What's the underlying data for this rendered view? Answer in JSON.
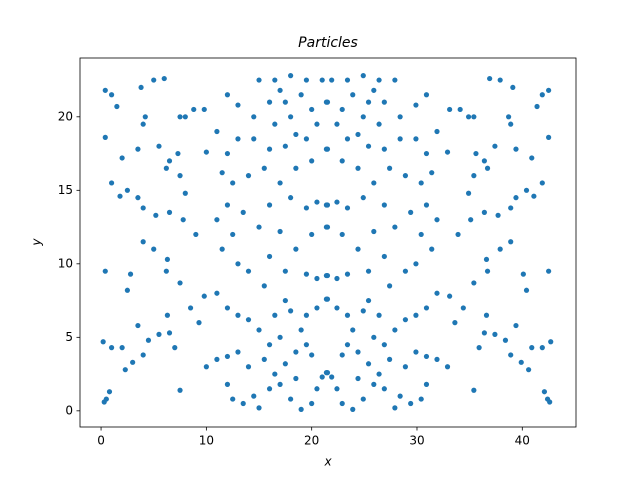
{
  "chart_data": {
    "type": "scatter",
    "title": "Particles",
    "x_label": "x",
    "y_label": "y",
    "color": "#1f77b4",
    "x": [
      0.3,
      0.5,
      0.8,
      0.2,
      1,
      2,
      2.3,
      3,
      4,
      3.5,
      4.5,
      5.5,
      6.5,
      7,
      7.5,
      6.3,
      6.2,
      6.3,
      5,
      4,
      2.8,
      2.5,
      0.4,
      7.5,
      8.5,
      9.3,
      9.8,
      9,
      7.8,
      8,
      6.5,
      5.2,
      4,
      3.5,
      2.5,
      1.8,
      1,
      0.4,
      2,
      3.5,
      4,
      4.2,
      5.5,
      6.5,
      7.3,
      7.5,
      8,
      8.8,
      9.8,
      3.8,
      5,
      6,
      1,
      0.4,
      1.5,
      6.2,
      7.5,
      10,
      42.6,
      42.4,
      42.1,
      42.7,
      41.9,
      40.9,
      40.6,
      39.9,
      38.9,
      39.4,
      38.4,
      37.4,
      36.4,
      35.9,
      35.4,
      36.6,
      36.7,
      36.6,
      37.9,
      38.9,
      40.1,
      40.4,
      42.5,
      35.4,
      34.4,
      33.6,
      33.1,
      33.9,
      35.1,
      34.9,
      36.4,
      37.7,
      38.9,
      39.4,
      40.4,
      41.1,
      41.9,
      42.5,
      40.9,
      39.4,
      38.9,
      38.7,
      37.4,
      36.4,
      35.6,
      35.4,
      34.9,
      34.1,
      33.1,
      39.1,
      37.9,
      36.9,
      41.9,
      42.5,
      41.4,
      36.7,
      35.4,
      32.9,
      10,
      11,
      12,
      12.5,
      13.5,
      14.5,
      15,
      16,
      17,
      18,
      19,
      20,
      20.5,
      21,
      21.5,
      16.5,
      17.5,
      18.5,
      15.5,
      14,
      13,
      12,
      16,
      17,
      18.5,
      19.5,
      20,
      15,
      14,
      13,
      12,
      11,
      16.5,
      18,
      19.5,
      20.5,
      21.5,
      19,
      17.5,
      15.5,
      14,
      13,
      11.5,
      12.5,
      16,
      17.5,
      19.5,
      20.5,
      21.5,
      18.5,
      20,
      21.5,
      17,
      15,
      13.5,
      12,
      11,
      16,
      18,
      19.5,
      20.5,
      21.5,
      17,
      15.5,
      14,
      12.5,
      11.5,
      18.5,
      20,
      21.5,
      19.5,
      17.5,
      16,
      14.5,
      13,
      12,
      11,
      16.5,
      18,
      20,
      21.5,
      19,
      17.5,
      16,
      14.5,
      13,
      12,
      15,
      16.5,
      18,
      19.5,
      21,
      17,
      20.5,
      18.5,
      32.9,
      31.9,
      30.9,
      30.4,
      29.4,
      28.4,
      27.9,
      26.9,
      25.9,
      24.9,
      23.9,
      22.9,
      22.4,
      21.9,
      21.4,
      26.4,
      25.4,
      24.4,
      27.4,
      28.9,
      29.9,
      30.9,
      26.9,
      25.9,
      24.4,
      23.4,
      22.9,
      27.9,
      28.9,
      29.9,
      30.9,
      31.9,
      26.4,
      24.9,
      23.4,
      22.4,
      21.4,
      23.9,
      25.4,
      27.4,
      28.9,
      29.9,
      31.4,
      30.4,
      26.9,
      25.4,
      23.4,
      22.4,
      21.4,
      24.4,
      22.9,
      21.4,
      25.9,
      27.9,
      29.4,
      30.9,
      31.9,
      26.9,
      24.9,
      23.4,
      22.4,
      21.4,
      25.9,
      27.4,
      28.9,
      30.4,
      31.4,
      24.4,
      22.9,
      21.4,
      23.4,
      25.4,
      26.9,
      28.4,
      29.9,
      30.9,
      31.9,
      26.4,
      24.9,
      22.9,
      21.4,
      23.9,
      25.4,
      26.9,
      28.4,
      29.9,
      30.9,
      27.9,
      26.4,
      24.9,
      23.4,
      21.9,
      25.9,
      22.4,
      24.4
    ],
    "values": [
      0.6,
      0.8,
      1.3,
      4.7,
      4.3,
      4.3,
      2.8,
      3.3,
      3.8,
      5.8,
      4.8,
      5.2,
      5.3,
      4.3,
      1.4,
      6.5,
      9.5,
      10.3,
      11,
      11.5,
      9.3,
      8.2,
      9.5,
      8.7,
      7,
      6,
      7.8,
      12,
      13,
      14.8,
      13.5,
      13.3,
      13.8,
      14.5,
      15,
      14.6,
      15.5,
      18.6,
      17.2,
      17.8,
      19.5,
      20,
      18,
      17,
      17.5,
      20,
      20,
      20.5,
      20.5,
      22,
      22.5,
      22.6,
      21.5,
      21.8,
      20.7,
      16.5,
      16,
      17.6,
      0.6,
      0.8,
      1.3,
      4.7,
      4.3,
      4.3,
      2.8,
      3.3,
      3.8,
      5.8,
      4.8,
      5.2,
      5.3,
      4.3,
      1.4,
      6.5,
      9.5,
      10.3,
      11,
      11.5,
      9.3,
      8.2,
      9.5,
      8.7,
      7,
      6,
      7.8,
      12,
      13,
      14.8,
      13.5,
      13.3,
      13.8,
      14.5,
      15,
      14.6,
      15.5,
      18.6,
      17.2,
      17.8,
      19.5,
      20,
      18,
      17,
      17.5,
      20,
      20,
      20.5,
      20.5,
      22,
      22.5,
      22.6,
      21.5,
      21.8,
      20.7,
      16.5,
      16,
      17.6,
      3,
      3.5,
      1.8,
      0.8,
      0.5,
      1,
      0.2,
      1.5,
      1.8,
      0.8,
      0.1,
      0.5,
      1.5,
      2.3,
      2.6,
      2.5,
      3.2,
      2.2,
      3.5,
      3,
      4,
      3.7,
      4.5,
      5,
      4,
      4.5,
      3.8,
      5.5,
      6.2,
      6.5,
      7,
      8,
      6.5,
      6.8,
      6.5,
      7,
      7.6,
      5.5,
      7.5,
      8.5,
      9.5,
      10,
      11,
      12,
      10.5,
      9.5,
      9.3,
      9,
      9.2,
      11,
      12,
      12.5,
      12.2,
      12.5,
      13.5,
      14,
      13,
      14,
      14.5,
      13.8,
      14.2,
      14,
      15.5,
      16.5,
      16,
      15.5,
      16.2,
      16.5,
      17,
      17.8,
      18.5,
      18,
      17.8,
      18.5,
      18.5,
      17.5,
      19,
      19.5,
      20,
      20.5,
      21,
      21.5,
      21,
      21,
      20,
      20.8,
      21.5,
      22.5,
      22.5,
      22.8,
      22.5,
      22.5,
      21.8,
      19.5,
      18.8,
      3,
      3.5,
      1.8,
      0.8,
      0.5,
      1,
      0.2,
      1.5,
      1.8,
      0.8,
      0.1,
      0.5,
      1.5,
      2.3,
      2.6,
      2.5,
      3.2,
      2.2,
      3.5,
      3,
      4,
      3.7,
      4.5,
      5,
      4,
      4.5,
      3.8,
      5.5,
      6.2,
      6.5,
      7,
      8,
      6.5,
      6.8,
      6.5,
      7,
      7.6,
      5.5,
      7.5,
      8.5,
      9.5,
      10,
      11,
      12,
      10.5,
      9.5,
      9.3,
      9,
      9.2,
      11,
      12,
      12.5,
      12.2,
      12.5,
      13.5,
      14,
      13,
      14,
      14.5,
      13.8,
      14.2,
      14,
      15.5,
      16.5,
      16,
      15.5,
      16.2,
      16.5,
      17,
      17.8,
      18.5,
      18,
      17.8,
      18.5,
      18.5,
      17.5,
      19,
      19.5,
      20,
      20.5,
      21,
      21.5,
      21,
      21,
      20,
      20.8,
      21.5,
      22.5,
      22.5,
      22.8,
      22.5,
      22.5,
      21.8,
      19.5,
      18.8
    ],
    "xlim": [
      -2,
      45.1
    ],
    "ylim": [
      -1.1,
      24
    ],
    "xticks": [
      0,
      10,
      20,
      30,
      40
    ],
    "yticks": [
      0,
      5,
      10,
      15,
      20
    ]
  }
}
